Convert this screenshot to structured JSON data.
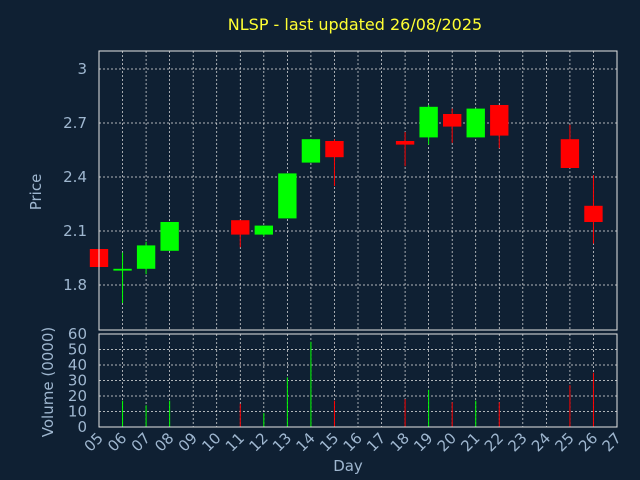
{
  "chart_data": [
    {
      "type": "candlestick",
      "title": "NLSP - last updated 26/08/2025",
      "ylabel": "Price",
      "ylim": [
        1.55,
        3.1
      ],
      "yticks": [
        "1.8",
        "2.1",
        "2.4",
        "2.7",
        "3"
      ],
      "grid": true,
      "up_color": "#00ff00",
      "down_color": "#ff0000",
      "candles": [
        {
          "day": "05",
          "open": 2.0,
          "high": 2.0,
          "low": 1.9,
          "close": 1.9
        },
        {
          "day": "06",
          "open": 1.88,
          "high": 1.98,
          "low": 1.7,
          "close": 1.89
        },
        {
          "day": "07",
          "open": 1.89,
          "high": 2.04,
          "low": 1.86,
          "close": 2.02
        },
        {
          "day": "08",
          "open": 1.99,
          "high": 2.15,
          "low": 1.99,
          "close": 2.15
        },
        {
          "day": "11",
          "open": 2.16,
          "high": 2.16,
          "low": 2.01,
          "close": 2.08
        },
        {
          "day": "12",
          "open": 2.08,
          "high": 2.13,
          "low": 2.07,
          "close": 2.13
        },
        {
          "day": "13",
          "open": 2.17,
          "high": 2.42,
          "low": 2.17,
          "close": 2.42
        },
        {
          "day": "14",
          "open": 2.48,
          "high": 2.61,
          "low": 2.48,
          "close": 2.61
        },
        {
          "day": "15",
          "open": 2.6,
          "high": 2.61,
          "low": 2.35,
          "close": 2.51
        },
        {
          "day": "18",
          "open": 2.6,
          "high": 2.65,
          "low": 2.46,
          "close": 2.58
        },
        {
          "day": "19",
          "open": 2.62,
          "high": 2.8,
          "low": 2.58,
          "close": 2.79
        },
        {
          "day": "20",
          "open": 2.75,
          "high": 2.78,
          "low": 2.59,
          "close": 2.68
        },
        {
          "day": "21",
          "open": 2.62,
          "high": 2.78,
          "low": 2.62,
          "close": 2.78
        },
        {
          "day": "22",
          "open": 2.8,
          "high": 2.8,
          "low": 2.56,
          "close": 2.63
        },
        {
          "day": "25",
          "open": 2.61,
          "high": 2.69,
          "low": 2.45,
          "close": 2.45
        },
        {
          "day": "26",
          "open": 2.24,
          "high": 2.41,
          "low": 2.03,
          "close": 2.15
        }
      ]
    },
    {
      "type": "bar",
      "ylabel": "Volume (0000)",
      "xlabel": "Day",
      "ylim": [
        0,
        60
      ],
      "yticks": [
        "0",
        "10",
        "20",
        "30",
        "40",
        "50",
        "60"
      ],
      "categories": [
        "05",
        "06",
        "07",
        "08",
        "09",
        "10",
        "11",
        "12",
        "13",
        "14",
        "15",
        "16",
        "17",
        "18",
        "19",
        "20",
        "21",
        "22",
        "23",
        "24",
        "25",
        "26",
        "27"
      ],
      "volume": [
        {
          "day": "05",
          "value": 0,
          "up": false
        },
        {
          "day": "06",
          "value": 17,
          "up": true
        },
        {
          "day": "07",
          "value": 14,
          "up": true
        },
        {
          "day": "08",
          "value": 17,
          "up": true
        },
        {
          "day": "11",
          "value": 15,
          "up": false
        },
        {
          "day": "12",
          "value": 9,
          "up": true
        },
        {
          "day": "13",
          "value": 32,
          "up": true
        },
        {
          "day": "14",
          "value": 55,
          "up": true
        },
        {
          "day": "15",
          "value": 17,
          "up": false
        },
        {
          "day": "18",
          "value": 18,
          "up": false
        },
        {
          "day": "19",
          "value": 24,
          "up": true
        },
        {
          "day": "20",
          "value": 16,
          "up": false
        },
        {
          "day": "21",
          "value": 17,
          "up": true
        },
        {
          "day": "22",
          "value": 16,
          "up": false
        },
        {
          "day": "25",
          "value": 27,
          "up": false
        },
        {
          "day": "26",
          "value": 35,
          "up": false
        }
      ]
    }
  ]
}
